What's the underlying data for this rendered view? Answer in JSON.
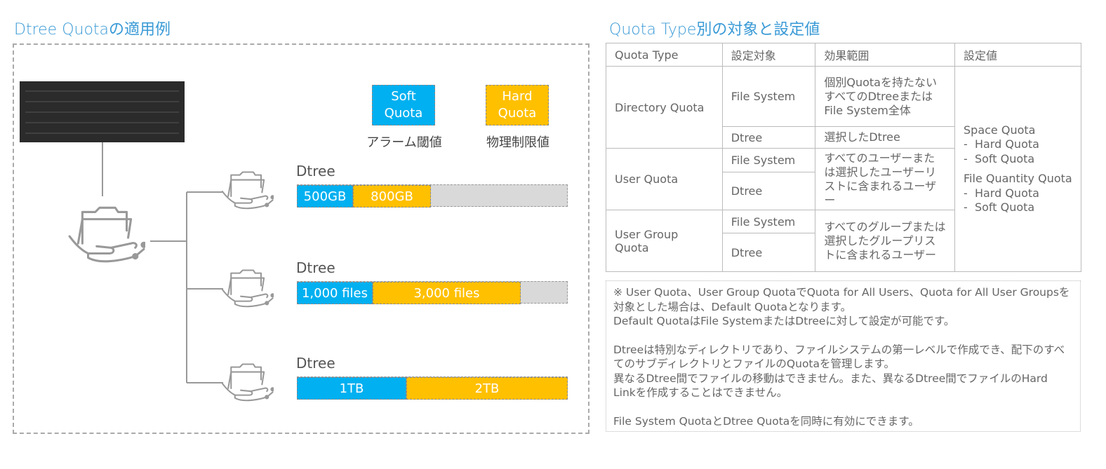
{
  "diagram": {
    "title": "Dtree Quotaの適用例",
    "legend": [
      {
        "label": "Soft Quota",
        "caption": "アラーム閾値"
      },
      {
        "label": "Hard Quota",
        "caption": "物理制限値"
      }
    ],
    "dtrees": [
      {
        "label": "Dtree",
        "segments": [
          "500GB",
          "800GB"
        ]
      },
      {
        "label": "Dtree",
        "segments": [
          "1,000 files",
          "3,000 files"
        ]
      },
      {
        "label": "Dtree",
        "segments": [
          "1TB",
          "2TB"
        ]
      }
    ]
  },
  "table": {
    "title": "Quota Type別の対象と設定値",
    "header": [
      "Quota Type",
      "設定対象",
      "効果範囲",
      "設定値"
    ],
    "groups": [
      {
        "type": "Directory Quota",
        "rows": [
          {
            "target": "File System",
            "scope": "個別Quotaを持たないすべてのDtreeまたはFile System全体"
          },
          {
            "target": "Dtree",
            "scope": "選択したDtree"
          }
        ]
      },
      {
        "type": "User Quota",
        "targets": [
          "File System",
          "Dtree"
        ],
        "scope": "すべてのユーザーまたは選択したユーザーリストに含まれるユーザー"
      },
      {
        "type": "User Group Quota",
        "targets": [
          "File System",
          "Dtree"
        ],
        "scope": "すべてのグループまたは選択したグループリストに含まれるユーザー"
      }
    ],
    "settings": [
      {
        "heading": "Space Quota",
        "items": [
          "-  Hard Quota",
          "-  Soft Quota"
        ]
      },
      {
        "heading": "File Quantity Quota",
        "items": [
          "-  Hard Quota",
          "-  Soft Quota"
        ]
      }
    ]
  },
  "note": {
    "paragraphs": [
      [
        "※ User Quota、User Group QuotaでQuota for All Users、Quota for All User Groupsを対象とした場合は、Default Quotaとなります。",
        "Default QuotaはFile SystemまたはDtreeに対して設定が可能です。"
      ],
      [
        "Dtreeは特別なディレクトリであり、ファイルシステムの第一レベルで作成でき、配下のすべてのサブディレクトリとファイルのQuotaを管理します。",
        "異なるDtree間でファイルの移動はできません。また、異なるDtree間でファイルのHard Linkを作成することはできません。"
      ],
      [
        "File System QuotaとDtree Quotaを同時に有効にできます。"
      ]
    ]
  }
}
